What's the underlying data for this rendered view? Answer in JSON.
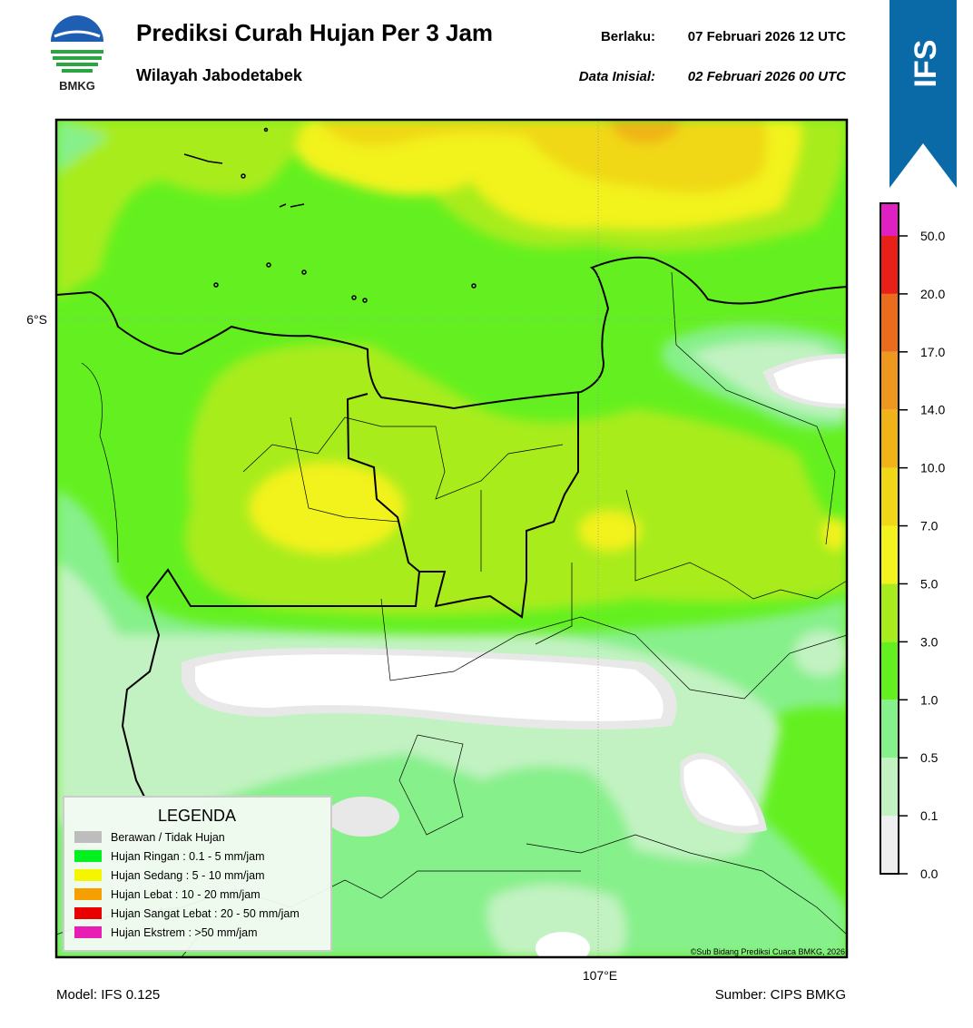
{
  "header": {
    "title": "Prediksi Curah Hujan Per 3 Jam",
    "subtitle": "Wilayah Jabodetabek",
    "valid_label": "Berlaku:",
    "valid_time": "07 Februari 2026 12 UTC",
    "init_label": "Data Inisial:",
    "init_time": "02 Februari 2026 00 UTC",
    "logo_text": "BMKG",
    "badge": "IFS"
  },
  "map": {
    "lat_label": "6°S",
    "lon_label": "107°E",
    "credit": "©Sub Bidang Prediksi Cuaca BMKG, 2026"
  },
  "legend": {
    "title": "LEGENDA",
    "items": [
      {
        "label": "Berawan / Tidak Hujan",
        "color": "#bdbdbd"
      },
      {
        "label": "Hujan Ringan : 0.1 - 5 mm/jam",
        "color": "#00f020"
      },
      {
        "label": "Hujan Sedang : 5 - 10 mm/jam",
        "color": "#f5f500"
      },
      {
        "label": "Hujan Lebat : 10 - 20 mm/jam",
        "color": "#f5a000"
      },
      {
        "label": "Hujan Sangat Lebat : 20 - 50 mm/jam",
        "color": "#e80000"
      },
      {
        "label": "Hujan Ekstrem : >50 mm/jam",
        "color": "#e81eb4"
      }
    ]
  },
  "colorbar": {
    "labels": [
      "0.0",
      "0.1",
      "0.5",
      "1.0",
      "3.0",
      "5.0",
      "7.0",
      "10.0",
      "14.0",
      "17.0",
      "20.0",
      "50.0"
    ],
    "colors": [
      "#efefef",
      "#c2f2c2",
      "#86f08a",
      "#64f020",
      "#a8ec1e",
      "#f2f21e",
      "#f0d818",
      "#f0b418",
      "#ee9820",
      "#eb6c1c",
      "#e82018",
      "#e020c0"
    ]
  },
  "footer": {
    "model": "Model: IFS 0.125",
    "source": "Sumber: CIPS BMKG"
  }
}
